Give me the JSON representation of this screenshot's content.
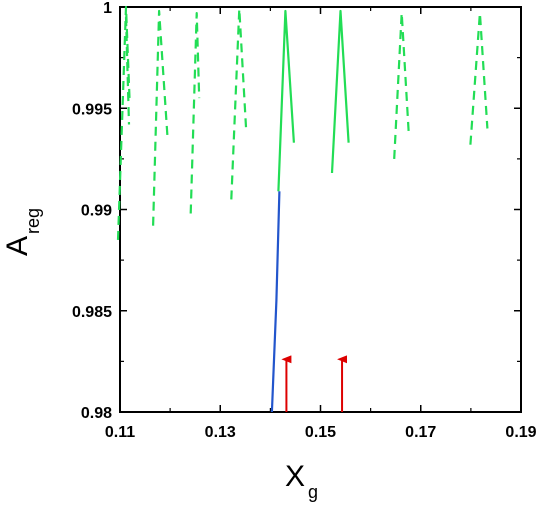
{
  "chart_data": {
    "type": "line",
    "title": "",
    "xlabel": "X",
    "xlabel_sub": "g",
    "ylabel": "A",
    "ylabel_sub": "reg",
    "xlim": [
      0.11,
      0.19
    ],
    "ylim": [
      0.98,
      1.0
    ],
    "x_ticks": [
      "0.11",
      "0.13",
      "0.15",
      "0.17",
      "0.19"
    ],
    "y_ticks": [
      "0.98",
      "0.985",
      "0.99",
      "0.995",
      "1"
    ],
    "x_tick_values": [
      0.11,
      0.13,
      0.15,
      0.17,
      0.19
    ],
    "y_tick_values": [
      0.98,
      0.985,
      0.99,
      0.995,
      1.0
    ],
    "grid": false,
    "legend": "none",
    "colors": {
      "green": "#22dd55",
      "blue": "#2255cc",
      "red": "#dd0000",
      "axis": "#000000"
    },
    "series": [
      {
        "style": "dashed",
        "color": "green",
        "x": [
          0.1096,
          0.1112,
          0.1119
        ],
        "y": [
          0.9885,
          1.0,
          0.9955
        ]
      },
      {
        "style": "dashed",
        "color": "green",
        "x": [
          0.1112,
          0.1118
        ],
        "y": [
          0.9995,
          0.9942
        ]
      },
      {
        "style": "dashed",
        "color": "green",
        "x": [
          0.1166,
          0.1178,
          0.1195
        ],
        "y": [
          0.9892,
          0.9998,
          0.9935
        ]
      },
      {
        "style": "dashed",
        "color": "green",
        "x": [
          0.1241,
          0.1253,
          0.1258
        ],
        "y": [
          0.9898,
          0.9997,
          0.9955
        ]
      },
      {
        "style": "dashed",
        "color": "green",
        "x": [
          0.1322,
          0.1338,
          0.1352
        ],
        "y": [
          0.9905,
          0.9999,
          0.9938
        ]
      },
      {
        "style": "solid",
        "color": "green",
        "x": [
          0.1416,
          0.143,
          0.1447
        ],
        "y": [
          0.9909,
          0.9998,
          0.9933
        ]
      },
      {
        "style": "solid",
        "color": "green",
        "x": [
          0.1523,
          0.154,
          0.1556
        ],
        "y": [
          0.9918,
          0.9998,
          0.9933
        ]
      },
      {
        "style": "dashed",
        "color": "green",
        "x": [
          0.1647,
          0.1662,
          0.1676
        ],
        "y": [
          0.9925,
          0.9997,
          0.9938
        ]
      },
      {
        "style": "dashed",
        "color": "green",
        "x": [
          0.1799,
          0.1818,
          0.1833
        ],
        "y": [
          0.9932,
          0.9997,
          0.994
        ]
      },
      {
        "style": "solid",
        "color": "blue",
        "x": [
          0.1403,
          0.1412,
          0.1418
        ],
        "y": [
          0.98,
          0.9855,
          0.9909
        ]
      }
    ],
    "annotations": [
      {
        "type": "arrow",
        "color": "red",
        "x": 0.1432,
        "y_from": 0.98,
        "y_to": 0.9828
      },
      {
        "type": "arrow",
        "color": "red",
        "x": 0.1543,
        "y_from": 0.98,
        "y_to": 0.9828
      }
    ]
  }
}
